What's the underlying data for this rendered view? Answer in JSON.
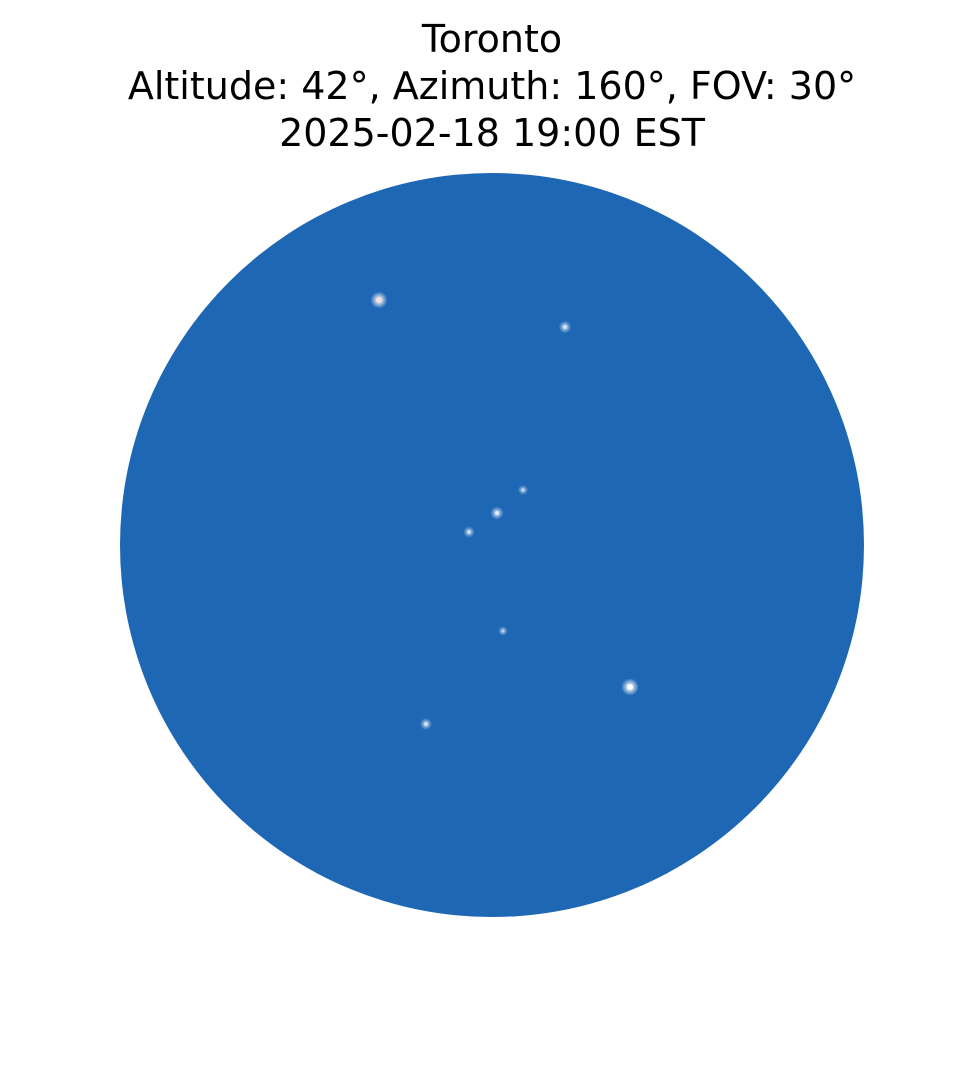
{
  "title": {
    "location": "Toronto",
    "view": "Altitude: 42°, Azimuth: 160°, FOV: 30°",
    "datetime": "2025-02-18 19:00 EST"
  },
  "sky": {
    "background_color": "#1e67b4",
    "star_color": "#ffffff",
    "stars": [
      {
        "brightness": 0.95,
        "tint": "#ffe0d8"
      },
      {
        "brightness": 0.55,
        "tint": "#e6f0ff"
      },
      {
        "brightness": 0.35,
        "tint": "#dfeaff"
      },
      {
        "brightness": 0.6,
        "tint": "#eef4ff"
      },
      {
        "brightness": 0.45,
        "tint": "#e6f0ff"
      },
      {
        "brightness": 0.3,
        "tint": "#dfeaff"
      },
      {
        "brightness": 1.0,
        "tint": "#ffffff"
      },
      {
        "brightness": 0.5,
        "tint": "#e6f0ff"
      }
    ]
  }
}
